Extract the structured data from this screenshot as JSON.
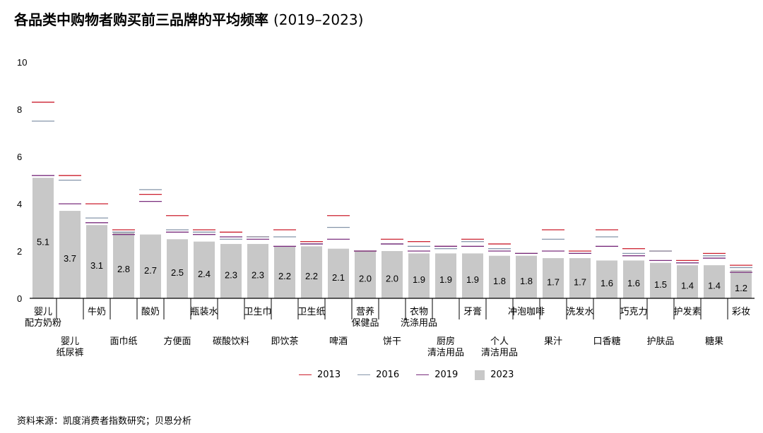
{
  "title": "各品类中购物者购买前三品牌的平均频率",
  "title_years": "(2019–2023)",
  "source": "资料来源：凯度消费者指数研究；贝恩分析",
  "colors": {
    "bar": "#c8c8c8",
    "y2013": "#cc1f2d",
    "y2016": "#8595aa",
    "y2019": "#7a2d7d",
    "axis": "#000000"
  },
  "legend": [
    {
      "label": "2013",
      "color": "#cc1f2d",
      "kind": "line"
    },
    {
      "label": "2016",
      "color": "#8595aa",
      "kind": "line"
    },
    {
      "label": "2019",
      "color": "#7a2d7d",
      "kind": "line"
    },
    {
      "label": "2023",
      "color": "#c8c8c8",
      "kind": "box"
    }
  ],
  "chart_data": {
    "type": "bar",
    "ylim": [
      0,
      10
    ],
    "yticks": [
      0,
      2,
      4,
      6,
      8,
      10
    ],
    "categories": [
      {
        "label": [
          "婴儿",
          "配方奶粉"
        ],
        "row": 0
      },
      {
        "label": [
          "婴儿",
          "纸尿裤"
        ],
        "row": 1
      },
      {
        "label": [
          "牛奶"
        ],
        "row": 0
      },
      {
        "label": [
          "面巾纸"
        ],
        "row": 1
      },
      {
        "label": [
          "酸奶"
        ],
        "row": 0
      },
      {
        "label": [
          "方便面"
        ],
        "row": 1
      },
      {
        "label": [
          "瓶装水"
        ],
        "row": 0
      },
      {
        "label": [
          "碳酸饮料"
        ],
        "row": 1
      },
      {
        "label": [
          "卫生巾"
        ],
        "row": 0
      },
      {
        "label": [
          "即饮茶"
        ],
        "row": 1
      },
      {
        "label": [
          "卫生纸"
        ],
        "row": 0
      },
      {
        "label": [
          "啤酒"
        ],
        "row": 1
      },
      {
        "label": [
          "营养",
          "保健品"
        ],
        "row": 0
      },
      {
        "label": [
          "饼干"
        ],
        "row": 1
      },
      {
        "label": [
          "衣物",
          "洗涤用品"
        ],
        "row": 0
      },
      {
        "label": [
          "厨房",
          "清洁用品"
        ],
        "row": 1
      },
      {
        "label": [
          "牙膏"
        ],
        "row": 0
      },
      {
        "label": [
          "个人",
          "清洁用品"
        ],
        "row": 1
      },
      {
        "label": [
          "冲泡咖啡"
        ],
        "row": 0
      },
      {
        "label": [
          "果汁"
        ],
        "row": 1
      },
      {
        "label": [
          "洗发水"
        ],
        "row": 0
      },
      {
        "label": [
          "口香糖"
        ],
        "row": 1
      },
      {
        "label": [
          "巧克力"
        ],
        "row": 0
      },
      {
        "label": [
          "护肤品"
        ],
        "row": 1
      },
      {
        "label": [
          "护发素"
        ],
        "row": 0
      },
      {
        "label": [
          "糖果"
        ],
        "row": 1
      },
      {
        "label": [
          "彩妆"
        ],
        "row": 0
      }
    ],
    "series": [
      {
        "name": "2023",
        "kind": "bar",
        "values": [
          5.1,
          3.7,
          3.1,
          2.8,
          2.7,
          2.5,
          2.4,
          2.3,
          2.3,
          2.2,
          2.2,
          2.1,
          2.0,
          2.0,
          1.9,
          1.9,
          1.9,
          1.8,
          1.8,
          1.7,
          1.7,
          1.6,
          1.6,
          1.5,
          1.4,
          1.4,
          1.2
        ],
        "labels": [
          "5.1",
          "3.7",
          "3.1",
          "2.8",
          "2.7",
          "2.5",
          "2.4",
          "2.3",
          "2.3",
          "2.2",
          "2.2",
          "2.1",
          "2.0",
          "2.0",
          "1.9",
          "1.9",
          "1.9",
          "1.8",
          "1.8",
          "1.7",
          "1.7",
          "1.6",
          "1.6",
          "1.5",
          "1.4",
          "1.4",
          "1.2"
        ]
      },
      {
        "name": "2013",
        "kind": "marker",
        "values": [
          8.3,
          5.2,
          4.0,
          2.9,
          4.4,
          3.5,
          2.9,
          2.8,
          2.6,
          2.9,
          2.4,
          3.5,
          2.0,
          2.5,
          2.4,
          2.2,
          2.5,
          2.3,
          1.9,
          2.9,
          2.0,
          2.9,
          2.1,
          2.0,
          1.6,
          1.9,
          1.4
        ]
      },
      {
        "name": "2016",
        "kind": "marker",
        "values": [
          7.5,
          5.0,
          3.4,
          2.8,
          4.6,
          2.9,
          2.8,
          2.5,
          2.6,
          2.6,
          2.3,
          3.0,
          2.0,
          2.3,
          2.2,
          2.1,
          2.4,
          2.1,
          1.9,
          2.5,
          1.9,
          2.6,
          1.9,
          2.0,
          1.5,
          1.8,
          1.3
        ]
      },
      {
        "name": "2019",
        "kind": "marker",
        "values": [
          5.2,
          4.0,
          3.2,
          2.7,
          4.1,
          2.8,
          2.7,
          2.6,
          2.5,
          2.2,
          2.3,
          2.5,
          2.0,
          2.3,
          2.0,
          2.2,
          2.2,
          2.0,
          1.9,
          2.0,
          1.9,
          2.2,
          1.8,
          1.6,
          1.5,
          1.7,
          1.1
        ]
      }
    ]
  }
}
